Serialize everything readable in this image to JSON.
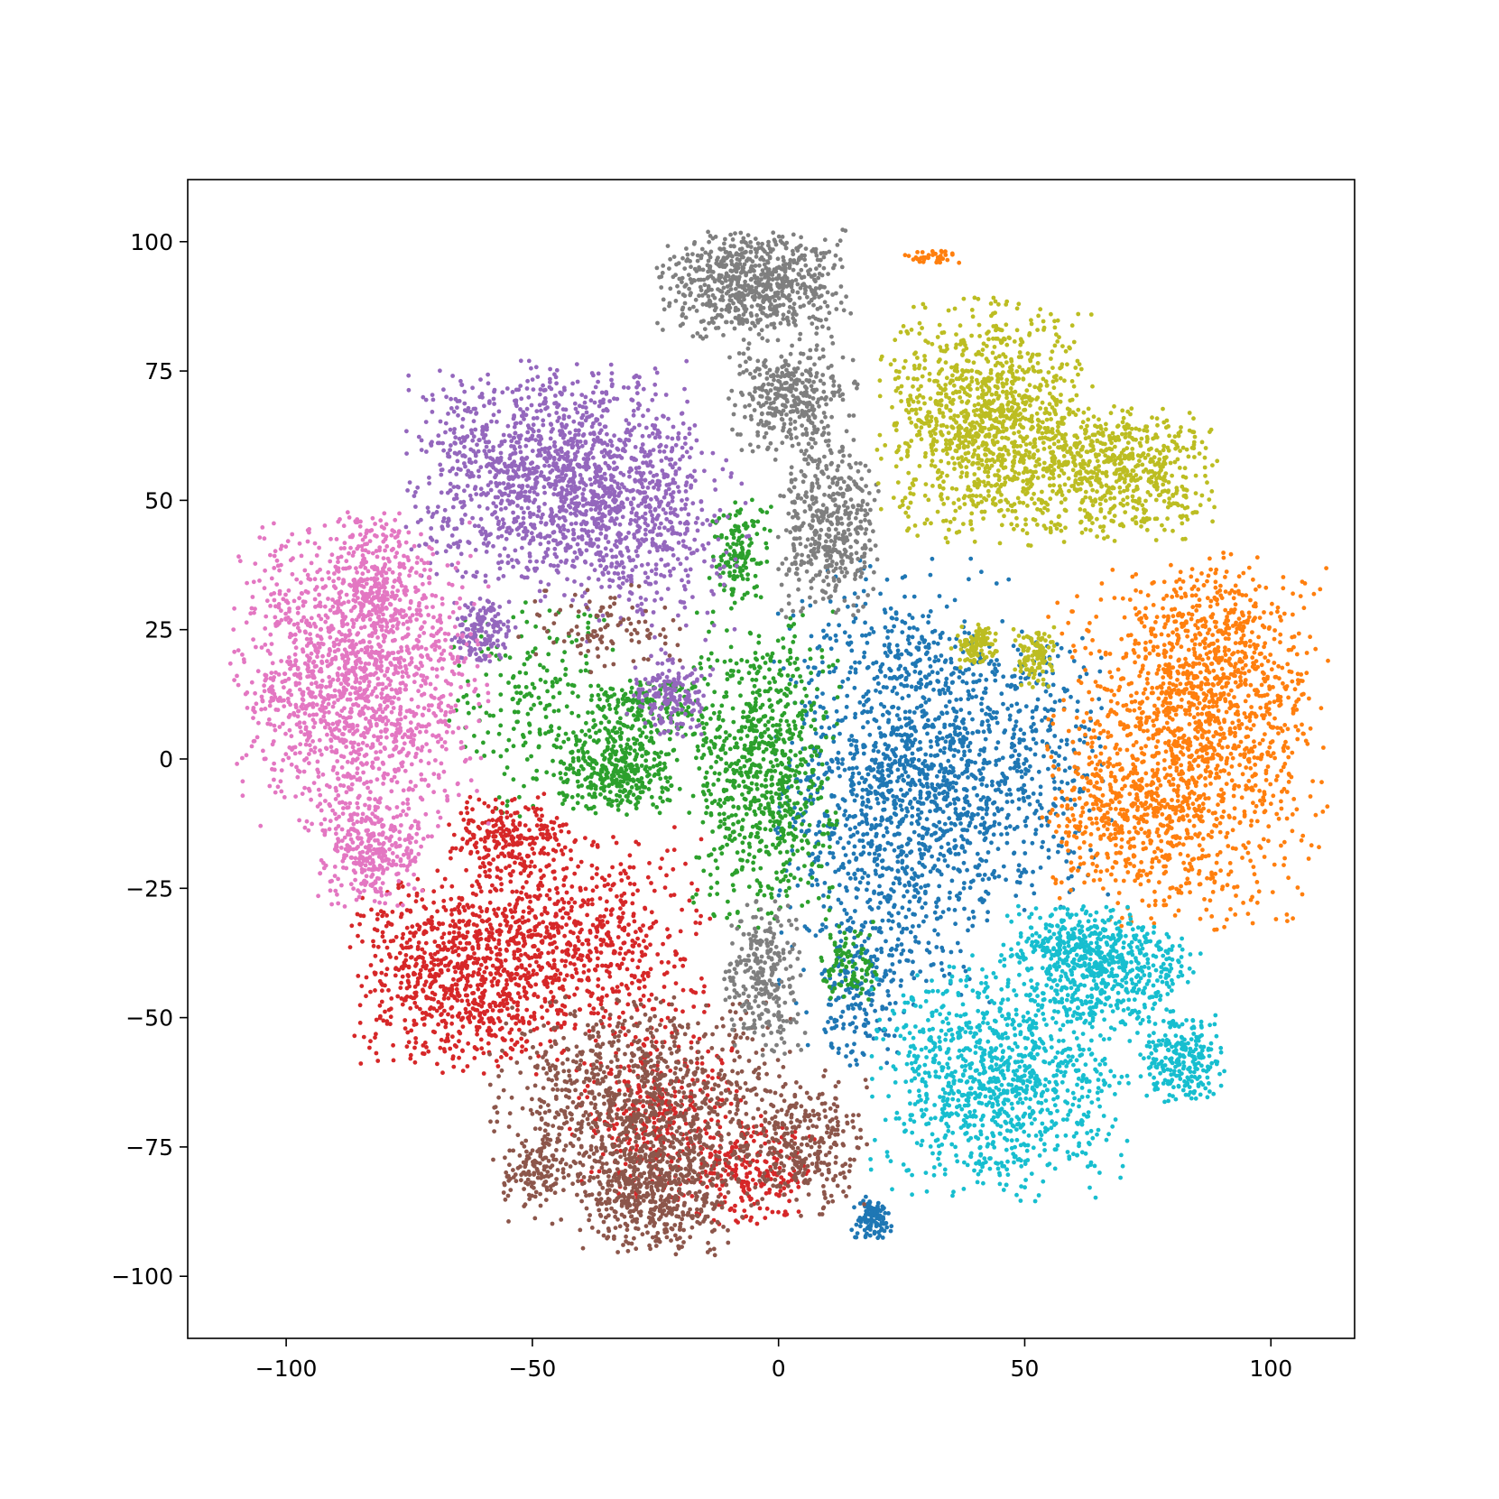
{
  "chart_data": {
    "type": "scatter",
    "title": "",
    "xlabel": "",
    "ylabel": "",
    "xlim": [
      -120,
      117
    ],
    "ylim": [
      -112,
      112
    ],
    "x_ticks": [
      -100,
      -50,
      0,
      50,
      100
    ],
    "y_ticks": [
      100,
      75,
      50,
      25,
      0,
      -25,
      -50,
      -75,
      -100
    ],
    "x_tick_labels": [
      "−100",
      "−50",
      "0",
      "50",
      "100"
    ],
    "y_tick_labels": [
      "100",
      "75",
      "50",
      "25",
      "0",
      "−25",
      "−50",
      "−75",
      "−100"
    ],
    "grid": false,
    "legend": false,
    "series": [
      {
        "color": "#1f77b4",
        "clusters": [
          {
            "center": [
              23,
              -5
            ],
            "spread": [
              11,
              20
            ],
            "share": 0.55
          },
          {
            "center": [
              42,
              -2
            ],
            "spread": [
              12,
              14
            ],
            "share": 0.3
          },
          {
            "center": [
              17,
              -45
            ],
            "spread": [
              4,
              7
            ],
            "share": 0.08
          },
          {
            "center": [
              19,
              -89
            ],
            "spread": [
              2,
              2
            ],
            "share": 0.05
          },
          {
            "center": [
              54,
              13
            ],
            "spread": [
              4,
              6
            ],
            "share": 0.02
          }
        ],
        "n": 2200
      },
      {
        "color": "#ff7f0e",
        "clusters": [
          {
            "center": [
              83,
              2
            ],
            "spread": [
              13,
              16
            ],
            "share": 0.65
          },
          {
            "center": [
              90,
              18
            ],
            "spread": [
              8,
              10
            ],
            "share": 0.2
          },
          {
            "center": [
              70,
              -12
            ],
            "spread": [
              8,
              6
            ],
            "share": 0.13
          },
          {
            "center": [
              31,
              97
            ],
            "spread": [
              3,
              0.7
            ],
            "share": 0.02
          }
        ],
        "n": 2000
      },
      {
        "color": "#2ca02c",
        "clusters": [
          {
            "center": [
              -3,
              -2
            ],
            "spread": [
              7,
              14
            ],
            "share": 0.45
          },
          {
            "center": [
              -33,
              -2
            ],
            "spread": [
              6,
              4
            ],
            "share": 0.2
          },
          {
            "center": [
              -28,
              10
            ],
            "spread": [
              6,
              3
            ],
            "share": 0.1
          },
          {
            "center": [
              -8,
              40
            ],
            "spread": [
              3,
              5
            ],
            "share": 0.08
          },
          {
            "center": [
              -50,
              10
            ],
            "spread": [
              8,
              10
            ],
            "share": 0.12
          },
          {
            "center": [
              15,
              -40
            ],
            "spread": [
              3,
              4
            ],
            "share": 0.05
          }
        ],
        "n": 1800
      },
      {
        "color": "#d62728",
        "clusters": [
          {
            "center": [
              -65,
              -42
            ],
            "spread": [
              10,
              9
            ],
            "share": 0.35
          },
          {
            "center": [
              -40,
              -35
            ],
            "spread": [
              12,
              10
            ],
            "share": 0.3
          },
          {
            "center": [
              -5,
              -80
            ],
            "spread": [
              6,
              5
            ],
            "share": 0.1
          },
          {
            "center": [
              -55,
              -15
            ],
            "spread": [
              6,
              4
            ],
            "share": 0.1
          },
          {
            "center": [
              -25,
              -70
            ],
            "spread": [
              8,
              8
            ],
            "share": 0.15
          }
        ],
        "n": 2300
      },
      {
        "color": "#9467bd",
        "clusters": [
          {
            "center": [
              -45,
              55
            ],
            "spread": [
              14,
              10
            ],
            "share": 0.65
          },
          {
            "center": [
              -28,
              45
            ],
            "spread": [
              10,
              10
            ],
            "share": 0.2
          },
          {
            "center": [
              -22,
              12
            ],
            "spread": [
              4,
              4
            ],
            "share": 0.08
          },
          {
            "center": [
              -60,
              25
            ],
            "spread": [
              3,
              3
            ],
            "share": 0.07
          }
        ],
        "n": 2100
      },
      {
        "color": "#8c564b",
        "clusters": [
          {
            "center": [
              -28,
              -68
            ],
            "spread": [
              14,
              10
            ],
            "share": 0.55
          },
          {
            "center": [
              -25,
              -85
            ],
            "spread": [
              7,
              5
            ],
            "share": 0.2
          },
          {
            "center": [
              5,
              -75
            ],
            "spread": [
              6,
              7
            ],
            "share": 0.15
          },
          {
            "center": [
              -50,
              -80
            ],
            "spread": [
              3,
              3
            ],
            "share": 0.05
          },
          {
            "center": [
              -35,
              25
            ],
            "spread": [
              8,
              4
            ],
            "share": 0.05
          }
        ],
        "n": 2000
      },
      {
        "color": "#e377c2",
        "clusters": [
          {
            "center": [
              -85,
              15
            ],
            "spread": [
              12,
              14
            ],
            "share": 0.75
          },
          {
            "center": [
              -82,
              35
            ],
            "spread": [
              4,
              6
            ],
            "share": 0.1
          },
          {
            "center": [
              -83,
              -18
            ],
            "spread": [
              5,
              5
            ],
            "share": 0.15
          }
        ],
        "n": 2100
      },
      {
        "color": "#7f7f7f",
        "clusters": [
          {
            "center": [
              -5,
              92
            ],
            "spread": [
              9,
              5
            ],
            "share": 0.4
          },
          {
            "center": [
              3,
              70
            ],
            "spread": [
              6,
              5
            ],
            "share": 0.2
          },
          {
            "center": [
              10,
              45
            ],
            "spread": [
              5,
              8
            ],
            "share": 0.25
          },
          {
            "center": [
              -3,
              -42
            ],
            "spread": [
              4,
              7
            ],
            "share": 0.15
          }
        ],
        "n": 1800
      },
      {
        "color": "#bcbd22",
        "clusters": [
          {
            "center": [
              42,
              65
            ],
            "spread": [
              10,
              11
            ],
            "share": 0.6
          },
          {
            "center": [
              70,
              55
            ],
            "spread": [
              9,
              6
            ],
            "share": 0.3
          },
          {
            "center": [
              40,
              22
            ],
            "spread": [
              2,
              2
            ],
            "share": 0.05
          },
          {
            "center": [
              52,
              20
            ],
            "spread": [
              2,
              3
            ],
            "share": 0.05
          }
        ],
        "n": 2000
      },
      {
        "color": "#17becf",
        "clusters": [
          {
            "center": [
              45,
              -62
            ],
            "spread": [
              12,
              11
            ],
            "share": 0.55
          },
          {
            "center": [
              68,
              -42
            ],
            "spread": [
              8,
              5
            ],
            "share": 0.2
          },
          {
            "center": [
              82,
              -58
            ],
            "spread": [
              4,
              4
            ],
            "share": 0.12
          },
          {
            "center": [
              60,
              -35
            ],
            "spread": [
              8,
              3
            ],
            "share": 0.13
          }
        ],
        "n": 2000
      }
    ]
  }
}
